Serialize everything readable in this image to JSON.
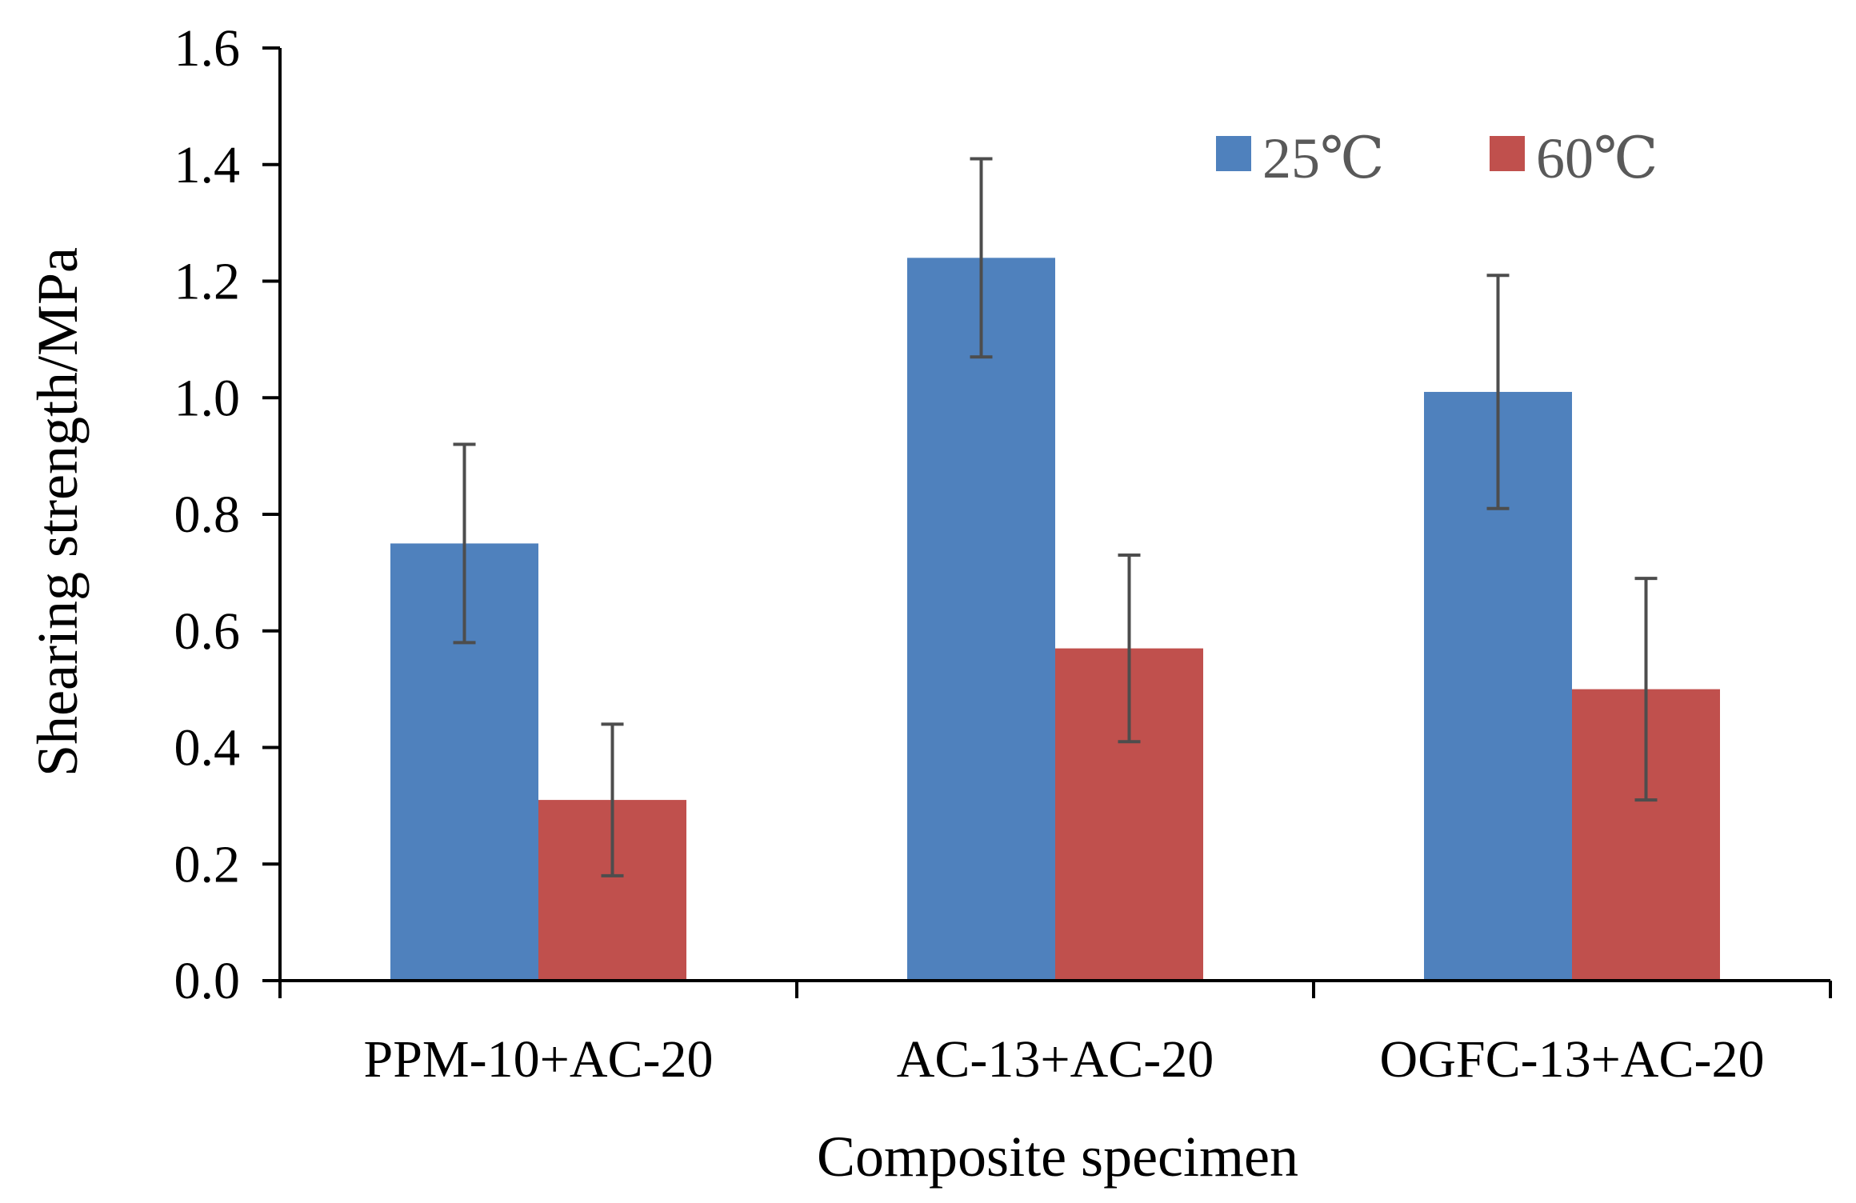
{
  "chart_data": {
    "type": "bar",
    "title": "",
    "xlabel": "Composite specimen",
    "ylabel": "Shearing strength/MPa",
    "ylim": [
      0,
      1.6
    ],
    "ytick_step": 0.2,
    "yticks": [
      "0.0",
      "0.2",
      "0.4",
      "0.6",
      "0.8",
      "1.0",
      "1.2",
      "1.4",
      "1.6"
    ],
    "grid": false,
    "legend_position": "top-right",
    "categories": [
      "PPM-10+AC-20",
      "AC-13+AC-20",
      "OGFC-13+AC-20"
    ],
    "series": [
      {
        "name": "25℃",
        "color": "#4F81BD",
        "values": [
          0.75,
          1.24,
          1.01
        ],
        "error_upper": [
          0.92,
          1.41,
          1.21
        ],
        "error_lower": [
          0.58,
          1.07,
          0.81
        ]
      },
      {
        "name": "60℃",
        "color": "#C0504D",
        "values": [
          0.31,
          0.57,
          0.5
        ],
        "error_upper": [
          0.44,
          0.73,
          0.69
        ],
        "error_lower": [
          0.18,
          0.41,
          0.31
        ]
      }
    ],
    "errorbar_color": "#4D4D4D"
  }
}
